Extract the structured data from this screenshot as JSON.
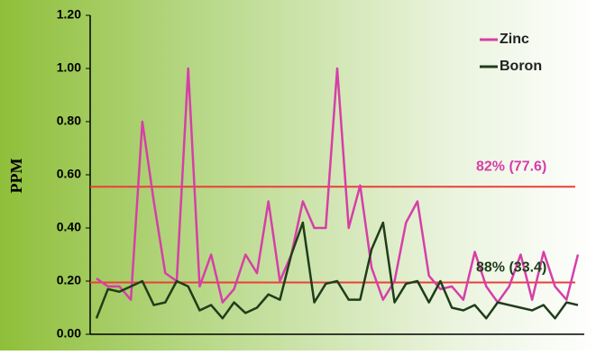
{
  "chart_data": {
    "type": "line",
    "y_label": "PPM",
    "categories": [
      null,
      null,
      null,
      null,
      null,
      null,
      null,
      null,
      null,
      null,
      null,
      null,
      null,
      null,
      null,
      null,
      null,
      null,
      null,
      null,
      null,
      null,
      null,
      null,
      null,
      null,
      null,
      null,
      null,
      null,
      null,
      null,
      null,
      null,
      null,
      null,
      null,
      null,
      null,
      null,
      null,
      null,
      null
    ],
    "series": [
      {
        "name": "Zinc",
        "color": "#d63fa8",
        "values": [
          0.21,
          0.18,
          0.18,
          0.13,
          0.8,
          0.5,
          0.23,
          0.2,
          1.0,
          0.18,
          0.3,
          0.12,
          0.17,
          0.3,
          0.23,
          0.5,
          0.2,
          0.3,
          0.5,
          0.4,
          0.4,
          1.0,
          0.4,
          0.56,
          0.25,
          0.13,
          0.2,
          0.42,
          0.5,
          0.22,
          0.17,
          0.18,
          0.13,
          0.31,
          0.18,
          0.12,
          0.18,
          0.3,
          0.13,
          0.31,
          0.18,
          0.13,
          0.3
        ]
      },
      {
        "name": "Boron",
        "color": "#1f3d1a",
        "values": [
          0.06,
          0.17,
          0.16,
          0.18,
          0.2,
          0.11,
          0.12,
          0.2,
          0.18,
          0.09,
          0.11,
          0.06,
          0.12,
          0.08,
          0.1,
          0.15,
          0.13,
          0.3,
          0.42,
          0.12,
          0.19,
          0.2,
          0.13,
          0.13,
          0.32,
          0.42,
          0.12,
          0.19,
          0.2,
          0.12,
          0.2,
          0.1,
          0.09,
          0.11,
          0.06,
          0.12,
          0.11,
          0.1,
          0.09,
          0.11,
          0.06,
          0.12,
          0.11
        ]
      }
    ],
    "reference_lines": [
      {
        "value": 0.555,
        "label": "82% (77.6)",
        "color": "#e8403a",
        "label_color": "#d63fa8"
      },
      {
        "value": 0.195,
        "label": "88% (33.4)",
        "color": "#e8403a",
        "label_color": "#1f3d1a"
      }
    ],
    "ylim": [
      0,
      1.2
    ],
    "yticks": [
      {
        "value": 0,
        "label": "0.00"
      },
      {
        "value": 0.2,
        "label": "0.20"
      },
      {
        "value": 0.4,
        "label": "0.40"
      },
      {
        "value": 0.6,
        "label": "0.60"
      },
      {
        "value": 0.8,
        "label": "0.80"
      },
      {
        "value": 1.0,
        "label": "1.00"
      },
      {
        "value": 1.2,
        "label": "1.20"
      }
    ]
  }
}
